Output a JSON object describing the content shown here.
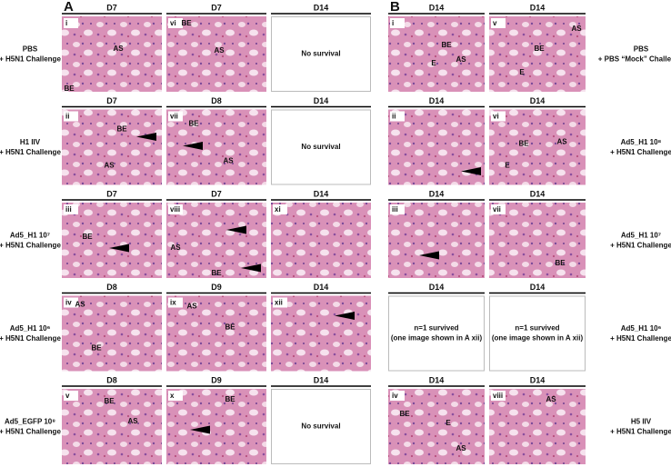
{
  "panels": [
    {
      "letter": "A",
      "rows": [
        {
          "label": [
            "PBS",
            "+ H5N1 Challenge"
          ],
          "cells": [
            {
              "day": "D7",
              "numeral": "i",
              "labels": [
                "AS",
                "BE"
              ]
            },
            {
              "day": "D7",
              "numeral": "vi",
              "labels": [
                "BE",
                "AS"
              ]
            },
            {
              "day": "D14",
              "text": [
                "No survival"
              ]
            }
          ]
        },
        {
          "label": [
            "H1 IIV",
            "+ H5N1 Challenge"
          ],
          "cells": [
            {
              "day": "D7",
              "numeral": "ii",
              "labels": [
                "BE",
                "AS"
              ]
            },
            {
              "day": "D8",
              "numeral": "vii",
              "labels": [
                "BE",
                "AS"
              ]
            },
            {
              "day": "D14",
              "text": [
                "No survival"
              ]
            }
          ]
        },
        {
          "label": [
            "Ad5_H1 10⁷",
            "+ H5N1 Challenge"
          ],
          "cells": [
            {
              "day": "D7",
              "numeral": "iii",
              "labels": [
                "BE"
              ]
            },
            {
              "day": "D7",
              "numeral": "viii",
              "labels": [
                "AS",
                "BE"
              ]
            },
            {
              "day": "D14",
              "numeral": "xi",
              "labels": []
            }
          ]
        },
        {
          "label": [
            "Ad5_H1 10⁶",
            "+ H5N1 Challenge"
          ],
          "cells": [
            {
              "day": "D8",
              "numeral": "iv",
              "labels": [
                "AS",
                "BE"
              ]
            },
            {
              "day": "D9",
              "numeral": "ix",
              "labels": [
                "AS",
                "BE"
              ]
            },
            {
              "day": "D14",
              "numeral": "xii",
              "labels": []
            }
          ]
        },
        {
          "label": [
            "Ad5_EGFP 10⁸",
            "+ H5N1 Challenge"
          ],
          "cells": [
            {
              "day": "D8",
              "numeral": "v",
              "labels": [
                "BE",
                "AS"
              ]
            },
            {
              "day": "D9",
              "numeral": "x",
              "labels": [
                "BE"
              ]
            },
            {
              "day": "D14",
              "text": [
                "No survival"
              ]
            }
          ]
        }
      ]
    },
    {
      "letter": "B",
      "rows": [
        {
          "label": [
            "PBS",
            "+ PBS “Mock” Challenge"
          ],
          "cells": [
            {
              "day": "D14",
              "numeral": "i",
              "labels": [
                "BE",
                "AS",
                "E"
              ]
            },
            {
              "day": "D14",
              "numeral": "v",
              "labels": [
                "BE",
                "AS",
                "E"
              ]
            }
          ]
        },
        {
          "label": [
            "Ad5_H1 10⁸",
            "+ H5N1 Challenge"
          ],
          "cells": [
            {
              "day": "D14",
              "numeral": "ii",
              "labels": []
            },
            {
              "day": "D14",
              "numeral": "vi",
              "labels": [
                "BE",
                "AS",
                "E"
              ]
            }
          ]
        },
        {
          "label": [
            "Ad5_H1 10⁷",
            "+ H5N1 Challenge"
          ],
          "cells": [
            {
              "day": "D14",
              "numeral": "iii",
              "labels": []
            },
            {
              "day": "D14",
              "numeral": "vii",
              "labels": [
                "BE"
              ]
            }
          ]
        },
        {
          "label": [
            "Ad5_H1 10⁶",
            "+ H5N1 Challenge"
          ],
          "cells": [
            {
              "day": "D14",
              "text": [
                "n=1 survived",
                "(one image shown in A xii)"
              ]
            },
            {
              "day": "D14",
              "text": [
                "n=1 survived",
                "(one image shown in A xii)"
              ]
            }
          ]
        },
        {
          "label": [
            "H5 IIV",
            "+ H5N1 Challenge"
          ],
          "cells": [
            {
              "day": "D14",
              "numeral": "iv",
              "labels": [
                "BE",
                "E",
                "AS"
              ]
            },
            {
              "day": "D14",
              "numeral": "viii",
              "labels": [
                "AS"
              ]
            }
          ]
        }
      ]
    }
  ]
}
